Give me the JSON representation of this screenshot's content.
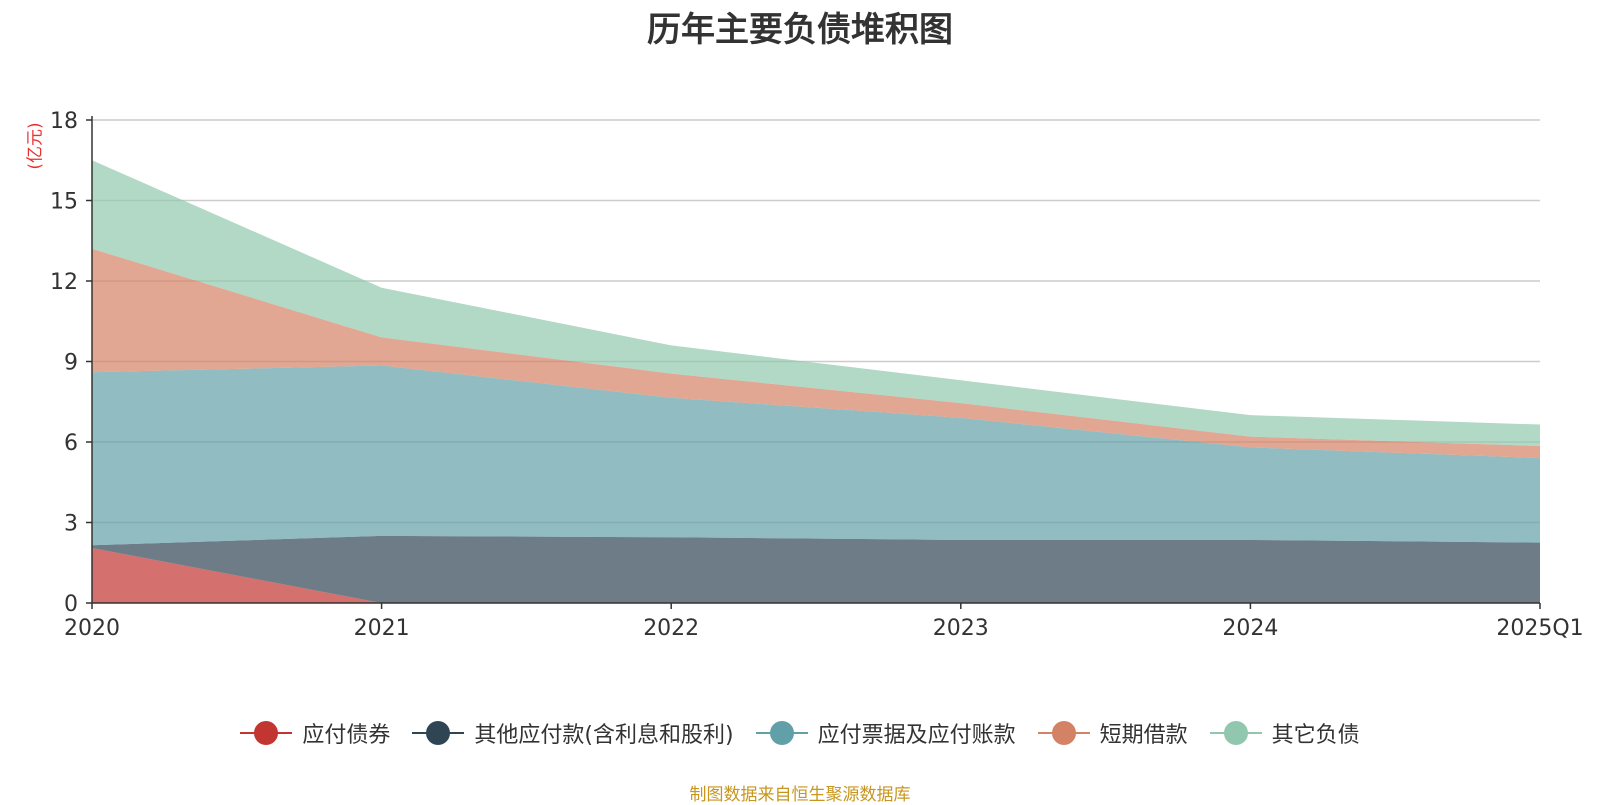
{
  "chart_data": {
    "type": "area",
    "title": "历年主要负债堆积图",
    "unit_label": "(亿元)",
    "categories": [
      "2020",
      "2021",
      "2022",
      "2023",
      "2024",
      "2025Q1"
    ],
    "ylim": [
      0,
      18
    ],
    "yticks": [
      "0",
      "3",
      "6",
      "9",
      "12",
      "15",
      "18"
    ],
    "stacked": true,
    "grid": true,
    "legend_position": "bottom",
    "series": [
      {
        "name": "应付债券",
        "color": "#c23531",
        "values": [
          2.05,
          0,
          0,
          0,
          0,
          0
        ]
      },
      {
        "name": "其他应付款(含利息和股利)",
        "color": "#2f4554",
        "values": [
          0.1,
          2.5,
          2.45,
          2.35,
          2.35,
          2.25
        ]
      },
      {
        "name": "应付票据及应付账款",
        "color": "#61a0a8",
        "values": [
          6.45,
          6.35,
          5.2,
          4.55,
          3.45,
          3.15
        ]
      },
      {
        "name": "短期借款",
        "color": "#d48265",
        "values": [
          4.6,
          1.05,
          0.9,
          0.55,
          0.4,
          0.45
        ]
      },
      {
        "name": "其它负债",
        "color": "#91c7ae",
        "values": [
          3.3,
          1.85,
          1.05,
          0.85,
          0.8,
          0.8
        ]
      }
    ]
  },
  "source_text": "制图数据来自恒生聚源数据库"
}
